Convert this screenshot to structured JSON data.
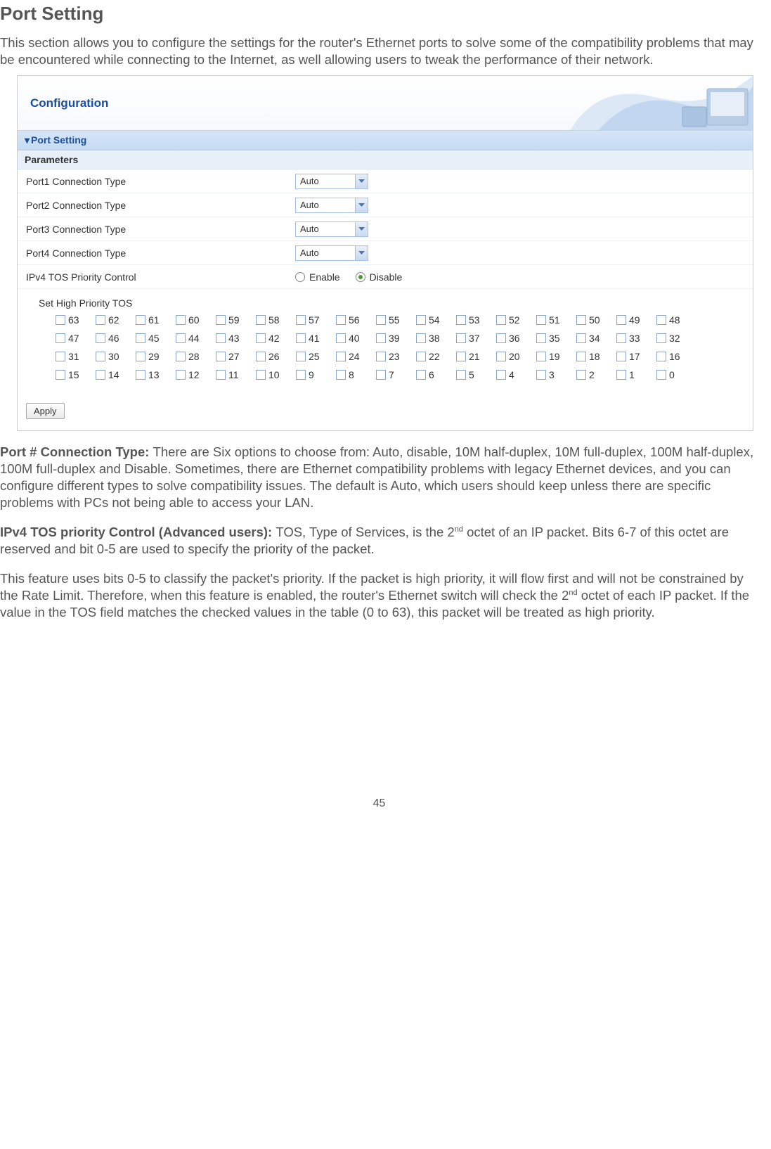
{
  "page": {
    "title": "Port Setting",
    "intro": "This section allows you to configure the settings for the router's Ethernet ports to solve some of the compatibility problems that may be encountered while connecting to the Internet, as well allowing users to tweak the performance of their network.",
    "number": "45"
  },
  "screenshot": {
    "header_title": "Configuration",
    "section_title": "Port Setting",
    "parameters_label": "Parameters",
    "rows": [
      {
        "label": "Port1  Connection Type",
        "value": "Auto"
      },
      {
        "label": "Port2  Connection Type",
        "value": "Auto"
      },
      {
        "label": "Port3  Connection Type",
        "value": "Auto"
      },
      {
        "label": "Port4  Connection Type",
        "value": "Auto"
      }
    ],
    "tos_row": {
      "label": "IPv4 TOS Priority Control",
      "enable_label": "Enable",
      "disable_label": "Disable",
      "selected": "disable"
    },
    "tos_title": "Set High Priority TOS",
    "tos_grid": [
      [
        "63",
        "62",
        "61",
        "60",
        "59",
        "58",
        "57",
        "56",
        "55",
        "54",
        "53",
        "52",
        "51",
        "50",
        "49",
        "48"
      ],
      [
        "47",
        "46",
        "45",
        "44",
        "43",
        "42",
        "41",
        "40",
        "39",
        "38",
        "37",
        "36",
        "35",
        "34",
        "33",
        "32"
      ],
      [
        "31",
        "30",
        "29",
        "28",
        "27",
        "26",
        "25",
        "24",
        "23",
        "22",
        "21",
        "20",
        "19",
        "18",
        "17",
        "16"
      ],
      [
        "15",
        "14",
        "13",
        "12",
        "11",
        "10",
        "9",
        "8",
        "7",
        "6",
        "5",
        "4",
        "3",
        "2",
        "1",
        "0"
      ]
    ],
    "apply_label": "Apply"
  },
  "paragraphs": {
    "p1_bold": "Port # Connection Type: ",
    "p1_body": "There are Six options to choose from: Auto, disable, 10M half-duplex, 10M full-duplex, 100M half-duplex, 100M full-duplex and Disable. Sometimes, there are Ethernet compatibility problems with legacy Ethernet devices, and you can configure different types to solve compatibility issues. The default is Auto, which users should keep unless there are specific problems with PCs not being able to access your LAN.",
    "p2_bold": "IPv4 TOS priority Control (Advanced users): ",
    "p2_a": "TOS, Type of Services, is the 2",
    "p2_sup1": "nd",
    "p2_b": " octet of an IP packet. Bits 6-7 of this octet are reserved and bit 0-5 are used to specify the priority of the packet.",
    "p3_a": "This feature uses bits 0-5 to classify the packet's priority. If the packet is high priority, it will flow first and will not be constrained by the Rate Limit.  Therefore, when this feature is enabled, the router's Ethernet switch will check the 2",
    "p3_sup": "nd",
    "p3_b": " octet of each IP packet. If the value in the TOS field matches the checked values in the table (0 to 63), this packet will be treated as high priority."
  },
  "colors": {
    "header_text": "#1a4f9e",
    "row_border": "#eef2f7",
    "select_border": "#a6c0e3"
  }
}
